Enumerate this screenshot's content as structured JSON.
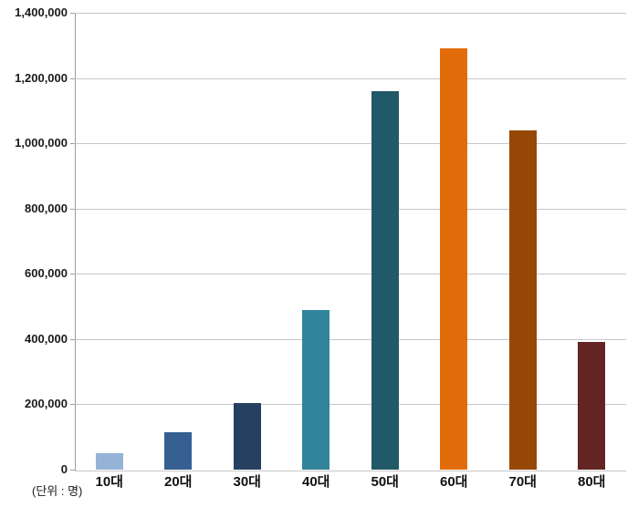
{
  "unit_label": "(단위 : 명)",
  "chart_data": {
    "type": "bar",
    "title": "",
    "xlabel": "",
    "ylabel": "",
    "unit_note": "(단위 : 명)",
    "categories": [
      "10대",
      "20대",
      "30대",
      "40대",
      "50대",
      "60대",
      "70대",
      "80대"
    ],
    "values": [
      50000,
      115000,
      205000,
      490000,
      1160000,
      1290000,
      1040000,
      390000
    ],
    "bar_colors": [
      "#95B3D7",
      "#366092",
      "#254061",
      "#31849B",
      "#215968",
      "#E36C0A",
      "#974806",
      "#632423"
    ],
    "ylim": [
      0,
      1400000
    ],
    "y_ticks": [
      {
        "value": 0,
        "label": "0"
      },
      {
        "value": 200000,
        "label": "200,000"
      },
      {
        "value": 400000,
        "label": "400,000"
      },
      {
        "value": 600000,
        "label": "600,000"
      },
      {
        "value": 800000,
        "label": "800,000"
      },
      {
        "value": 1000000,
        "label": "1,000,000"
      },
      {
        "value": 1200000,
        "label": "1,200,000"
      },
      {
        "value": 1400000,
        "label": "1,400,000"
      }
    ],
    "grid": true,
    "legend": "none",
    "gridline_color": "#c6c6c6",
    "axis_color": "#9e9e9e"
  }
}
